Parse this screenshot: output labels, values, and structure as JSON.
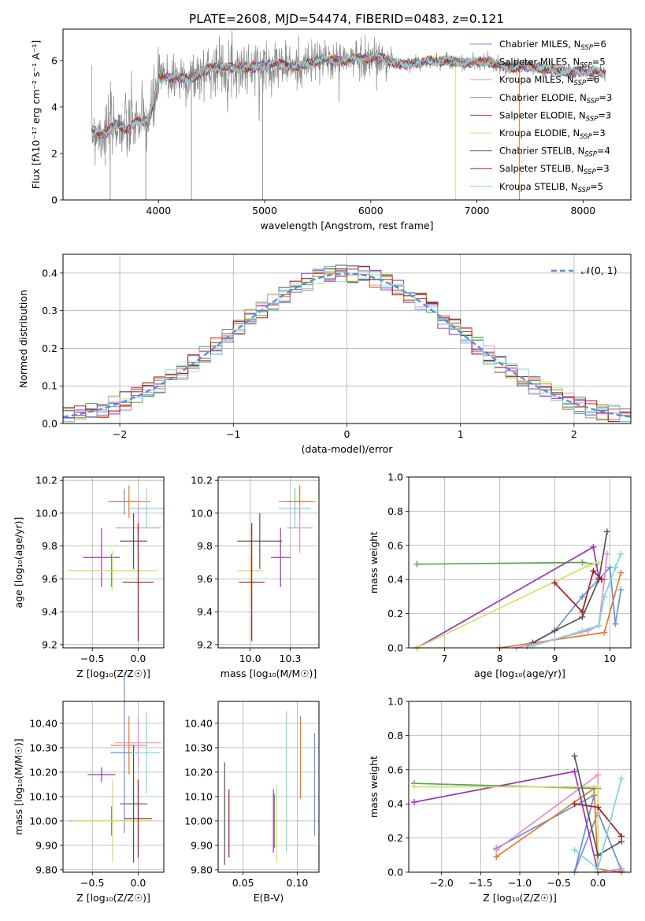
{
  "figure": {
    "title": "PLATE=2608, MJD=54474, FIBERID=0483, z=0.121"
  },
  "models": [
    {
      "name": "Chabrier MILES",
      "nssp": "6",
      "color": "#6a8fd9"
    },
    {
      "name": "Salpeter MILES",
      "nssp": "5",
      "color": "#e07b2a"
    },
    {
      "name": "Kroupa MILES",
      "nssp": "6",
      "color": "#e98bc6"
    },
    {
      "name": "Chabrier ELODIE",
      "nssp": "3",
      "color": "#59a14f"
    },
    {
      "name": "Salpeter ELODIE",
      "nssp": "3",
      "color": "#9a35b0"
    },
    {
      "name": "Kroupa ELODIE",
      "nssp": "3",
      "color": "#cfe26b"
    },
    {
      "name": "Chabrier STELIB",
      "nssp": "4",
      "color": "#555555"
    },
    {
      "name": "Salpeter STELIB",
      "nssp": "3",
      "color": "#a51d1d"
    },
    {
      "name": "Kroupa STELIB",
      "nssp": "5",
      "color": "#7fd5da"
    }
  ],
  "chart_data": [
    {
      "id": "spectrum",
      "type": "line",
      "title": "PLATE=2608, MJD=54474, FIBERID=0483, z=0.121",
      "xlabel": "wavelength [Angstrom, rest frame]",
      "ylabel": "Flux [fλ10⁻¹⁷ erg cm⁻² s⁻¹ A⁻¹]",
      "xlim": [
        3100,
        8450
      ],
      "ylim": [
        0,
        7.35
      ],
      "xticks": [
        4000,
        5000,
        6000,
        7000,
        8000
      ],
      "yticks": [
        0,
        2,
        4,
        6
      ],
      "legend": "right",
      "data_color": "#888888",
      "model_continuum": {
        "x": [
          3370,
          3500,
          3600,
          3700,
          3800,
          3900,
          3950,
          4000,
          4100,
          4300,
          4500,
          4700,
          4900,
          5100,
          5300,
          5500,
          5700,
          5900,
          6100,
          6300,
          6500,
          6700,
          6900,
          7100,
          7300,
          7500,
          7700,
          7900,
          8100,
          8200
        ],
        "y": [
          3.0,
          2.8,
          3.3,
          3.0,
          3.4,
          3.4,
          4.0,
          5.2,
          5.3,
          5.2,
          5.7,
          5.7,
          5.7,
          5.9,
          5.7,
          6.0,
          6.0,
          6.1,
          6.1,
          5.8,
          5.95,
          6.0,
          5.9,
          5.95,
          5.7,
          5.75,
          5.6,
          5.5,
          5.55,
          5.4
        ]
      }
    },
    {
      "id": "residuals",
      "type": "histogram",
      "xlabel": "(data-model)/error",
      "ylabel": "Normed distribution",
      "xlim": [
        -2.5,
        2.5
      ],
      "ylim": [
        0,
        0.45
      ],
      "xticks": [
        -2,
        -1,
        0,
        1,
        2
      ],
      "yticks": [
        0.0,
        0.1,
        0.2,
        0.3,
        0.4
      ],
      "grid": true,
      "legend": "top-right",
      "reference": {
        "label": "𝒩(0, 1)",
        "color": "#5b8dd9",
        "mean": 0,
        "sigma": 1
      }
    },
    {
      "id": "z-age",
      "type": "scatter",
      "xlabel": "Z [log₁₀(Z/Z☉)]",
      "ylabel": "age  [log₁₀(age/yr)]",
      "xlim": [
        -0.82,
        0.28
      ],
      "ylim": [
        9.18,
        10.22
      ],
      "xticks": [
        -0.5,
        0.0
      ],
      "yticks": [
        9.2,
        9.4,
        9.6,
        9.8,
        10.0,
        10.2
      ],
      "grid": true,
      "points": [
        {
          "model": 0,
          "x": -0.15,
          "y": 10.07,
          "xerr": 0.15,
          "yerr": 0.08
        },
        {
          "model": 1,
          "x": -0.1,
          "y": 10.07,
          "xerr": 0.23,
          "yerr": 0.1
        },
        {
          "model": 2,
          "x": 0.0,
          "y": 9.91,
          "xerr": 0.25,
          "yerr": 0.15
        },
        {
          "model": 3,
          "x": -0.29,
          "y": 9.65,
          "xerr": 0.45,
          "yerr": 0.1
        },
        {
          "model": 4,
          "x": -0.4,
          "y": 9.73,
          "xerr": 0.2,
          "yerr": 0.18
        },
        {
          "model": 5,
          "x": -0.28,
          "y": 9.65,
          "xerr": 0.5,
          "yerr": 0.12
        },
        {
          "model": 6,
          "x": -0.05,
          "y": 9.83,
          "xerr": 0.15,
          "yerr": 0.17
        },
        {
          "model": 7,
          "x": 0.0,
          "y": 9.58,
          "xerr": 0.17,
          "yerr": 0.36
        },
        {
          "model": 8,
          "x": 0.09,
          "y": 10.03,
          "xerr": 0.2,
          "yerr": 0.12
        }
      ]
    },
    {
      "id": "mass-age",
      "type": "scatter",
      "xlabel": "mass [log₁₀(M/M☉)]",
      "ylabel": "",
      "xlim": [
        9.8,
        10.43
      ],
      "ylim": [
        9.18,
        10.22
      ],
      "xticks": [
        10.0,
        10.25
      ],
      "yticks": [
        9.2,
        9.4,
        9.6,
        9.8,
        10.0,
        10.2
      ],
      "grid": true,
      "points": [
        {
          "model": 0,
          "x": 10.28,
          "y": 10.07,
          "xerr": 0.1,
          "yerr": 0.08
        },
        {
          "model": 1,
          "x": 10.31,
          "y": 10.07,
          "xerr": 0.1,
          "yerr": 0.1
        },
        {
          "model": 2,
          "x": 10.31,
          "y": 9.91,
          "xerr": 0.08,
          "yerr": 0.15
        },
        {
          "model": 3,
          "x": 10.0,
          "y": 9.65,
          "xerr": 0.06,
          "yerr": 0.1
        },
        {
          "model": 4,
          "x": 10.19,
          "y": 9.73,
          "xerr": 0.06,
          "yerr": 0.18
        },
        {
          "model": 5,
          "x": 10.0,
          "y": 9.65,
          "xerr": 0.08,
          "yerr": 0.12
        },
        {
          "model": 6,
          "x": 10.06,
          "y": 9.83,
          "xerr": 0.14,
          "yerr": 0.17
        },
        {
          "model": 7,
          "x": 10.01,
          "y": 9.58,
          "xerr": 0.08,
          "yerr": 0.36
        },
        {
          "model": 8,
          "x": 10.28,
          "y": 10.03,
          "xerr": 0.1,
          "yerr": 0.12
        }
      ]
    },
    {
      "id": "age-weight",
      "type": "line",
      "xlabel": "age  [log₁₀(age/yr)]",
      "ylabel": "mass weight",
      "xlim": [
        6.35,
        10.38
      ],
      "ylim": [
        0,
        1
      ],
      "xticks": [
        7,
        8,
        9,
        10
      ],
      "yticks": [
        0.0,
        0.2,
        0.4,
        0.6,
        0.8,
        1.0
      ],
      "grid": true,
      "series": [
        {
          "model": 0,
          "x": [
            8.5,
            9.0,
            9.5,
            10.0,
            10.1,
            10.2
          ],
          "y": [
            0.01,
            0.1,
            0.3,
            0.47,
            0.14,
            0.34
          ]
        },
        {
          "model": 1,
          "x": [
            8.0,
            9.9,
            10.2
          ],
          "y": [
            0.0,
            0.09,
            0.44
          ]
        },
        {
          "model": 2,
          "x": [
            8.3,
            9.0,
            9.6,
            9.8,
            9.9,
            9.95
          ],
          "y": [
            0.0,
            0.05,
            0.1,
            0.13,
            0.4,
            0.55
          ]
        },
        {
          "model": 3,
          "x": [
            6.5,
            9.5,
            9.75
          ],
          "y": [
            0.49,
            0.5,
            0.49
          ]
        },
        {
          "model": 4,
          "x": [
            6.5,
            9.7,
            9.8,
            9.85
          ],
          "y": [
            0.0,
            0.59,
            0.41,
            0.4
          ]
        },
        {
          "model": 5,
          "x": [
            6.5,
            9.6,
            9.8
          ],
          "y": [
            0.0,
            0.48,
            0.5
          ]
        },
        {
          "model": 6,
          "x": [
            8.6,
            9.0,
            9.5,
            9.8,
            9.95
          ],
          "y": [
            0.03,
            0.1,
            0.18,
            0.4,
            0.68
          ]
        },
        {
          "model": 7,
          "x": [
            9.0,
            9.5,
            9.7,
            9.85
          ],
          "y": [
            0.38,
            0.21,
            0.45,
            0.4
          ]
        },
        {
          "model": 8,
          "x": [
            8.6,
            9.5,
            9.8,
            9.9,
            10.1,
            10.2
          ],
          "y": [
            0.01,
            0.1,
            0.13,
            0.3,
            0.47,
            0.55
          ]
        }
      ]
    },
    {
      "id": "z-mass",
      "type": "scatter",
      "xlabel": "Z [log₁₀(Z/Z☉)]",
      "ylabel": "mass [log₁₀(M/M☉)]",
      "xlim": [
        -0.82,
        0.28
      ],
      "ylim": [
        9.79,
        10.49
      ],
      "xticks": [
        -0.5,
        0.0
      ],
      "yticks": [
        9.8,
        9.9,
        10.0,
        10.1,
        10.2,
        10.3,
        10.4
      ],
      "grid": true,
      "points": [
        {
          "model": 0,
          "x": -0.15,
          "y": 10.28,
          "xerr": 0.15,
          "yerr": 0.33
        },
        {
          "model": 1,
          "x": -0.1,
          "y": 10.31,
          "xerr": 0.2,
          "yerr": 0.12
        },
        {
          "model": 2,
          "x": 0.0,
          "y": 10.32,
          "xerr": 0.25,
          "yerr": 0.1
        },
        {
          "model": 3,
          "x": -0.29,
          "y": 10.0,
          "xerr": 0.45,
          "yerr": 0.06
        },
        {
          "model": 4,
          "x": -0.4,
          "y": 10.19,
          "xerr": 0.15,
          "yerr": 0.03
        },
        {
          "model": 5,
          "x": -0.28,
          "y": 10.0,
          "xerr": 0.45,
          "yerr": 0.17
        },
        {
          "model": 6,
          "x": -0.05,
          "y": 10.07,
          "xerr": 0.15,
          "yerr": 0.24
        },
        {
          "model": 7,
          "x": 0.0,
          "y": 10.01,
          "xerr": 0.15,
          "yerr": 0.16
        },
        {
          "model": 8,
          "x": 0.09,
          "y": 10.28,
          "xerr": 0.15,
          "yerr": 0.17
        }
      ]
    },
    {
      "id": "ebv-mass",
      "type": "scatter",
      "xlabel": "E(B-V)",
      "ylabel": "",
      "xlim": [
        0.027,
        0.12
      ],
      "ylim": [
        9.79,
        10.49
      ],
      "xticks": [
        0.05,
        0.1
      ],
      "yticks": [
        9.8,
        9.9,
        10.0,
        10.1,
        10.2,
        10.3,
        10.4
      ],
      "grid": true,
      "points": [
        {
          "model": 0,
          "x": 0.116,
          "y": 10.15,
          "yerr": 0.21
        },
        {
          "model": 1,
          "x": 0.103,
          "y": 10.26,
          "yerr": 0.17
        },
        {
          "model": 2,
          "x": 0.103,
          "y": 10.26,
          "yerr": 0.0
        },
        {
          "model": 3,
          "x": 0.079,
          "y": 10.0,
          "yerr": 0.11
        },
        {
          "model": 4,
          "x": 0.078,
          "y": 10.0,
          "yerr": 0.13
        },
        {
          "model": 5,
          "x": 0.081,
          "y": 9.99,
          "yerr": 0.16
        },
        {
          "model": 6,
          "x": 0.033,
          "y": 10.03,
          "yerr": 0.21
        },
        {
          "model": 7,
          "x": 0.037,
          "y": 9.99,
          "yerr": 0.14
        },
        {
          "model": 8,
          "x": 0.09,
          "y": 10.16,
          "yerr": 0.29
        }
      ]
    },
    {
      "id": "z-weight",
      "type": "line",
      "xlabel": "Z [log₁₀(Z/Z☉)]",
      "ylabel": "mass weight",
      "xlim": [
        -2.42,
        0.42
      ],
      "ylim": [
        0,
        1
      ],
      "xticks": [
        -2.0,
        -1.5,
        -1.0,
        -0.5,
        0.0
      ],
      "yticks": [
        0.0,
        0.2,
        0.4,
        0.6,
        0.8,
        1.0
      ],
      "grid": true,
      "series": [
        {
          "model": 0,
          "x": [
            -1.3,
            -0.05,
            -0.3,
            0.0,
            0.3
          ],
          "y": [
            0.14,
            0.45,
            0.0,
            0.35,
            0.01
          ]
        },
        {
          "model": 1,
          "x": [
            -1.3,
            -0.05,
            0.0,
            0.3
          ],
          "y": [
            0.09,
            0.49,
            0.02,
            0.0
          ]
        },
        {
          "model": 2,
          "x": [
            -1.3,
            0.0,
            0.0,
            0.3
          ],
          "y": [
            0.13,
            0.57,
            0.0,
            0.02
          ]
        },
        {
          "model": 3,
          "x": [
            -2.35,
            0.0
          ],
          "y": [
            0.52,
            0.49
          ]
        },
        {
          "model": 4,
          "x": [
            -2.35,
            -0.3,
            0.0
          ],
          "y": [
            0.41,
            0.59,
            0.0
          ]
        },
        {
          "model": 5,
          "x": [
            -2.35,
            0.0,
            0.0
          ],
          "y": [
            0.5,
            0.5,
            0.0
          ]
        },
        {
          "model": 6,
          "x": [
            -0.3,
            0.0,
            0.3
          ],
          "y": [
            0.68,
            0.1,
            0.18
          ]
        },
        {
          "model": 7,
          "x": [
            -0.3,
            0.0,
            0.3
          ],
          "y": [
            0.4,
            0.38,
            0.21
          ]
        },
        {
          "model": 8,
          "x": [
            -0.3,
            0.0,
            0.3
          ],
          "y": [
            0.13,
            0.02,
            0.55
          ]
        }
      ]
    }
  ]
}
